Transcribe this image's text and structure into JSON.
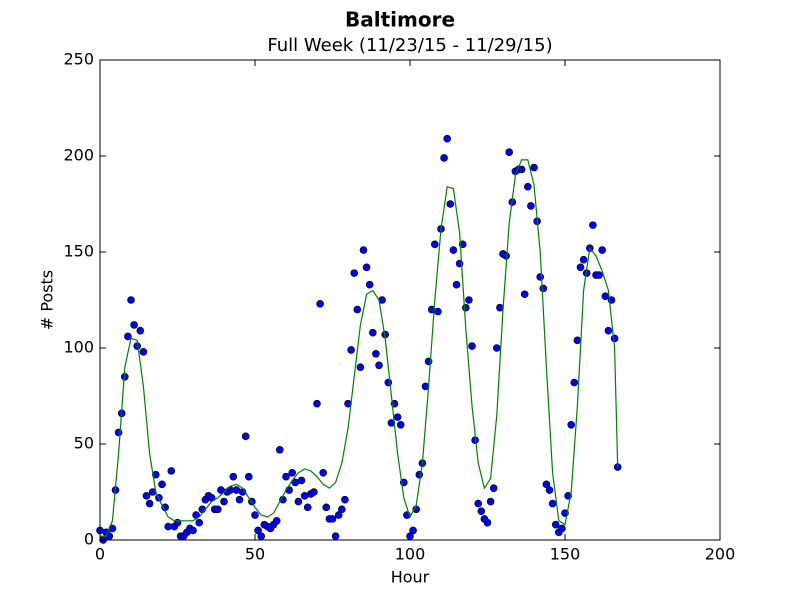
{
  "chart_data": {
    "type": "scatter",
    "title": "Baltimore",
    "subtitle": "Full Week (11/23/15 - 11/29/15)",
    "x_label": "Hour",
    "y_label": "# Posts",
    "xlim": [
      0,
      200
    ],
    "xticks": [
      0,
      50,
      100,
      150,
      200
    ],
    "ylim": [
      0,
      250
    ],
    "yticks": [
      0,
      50,
      100,
      150,
      200,
      250
    ],
    "grid": false,
    "series": [
      {
        "mode": "markers",
        "color": "#0000ff",
        "x": [
          0,
          1,
          2,
          3,
          4,
          5,
          6,
          7,
          8,
          9,
          10,
          11,
          12,
          13,
          14,
          15,
          16,
          17,
          18,
          19,
          20,
          21,
          22,
          23,
          24,
          25,
          26,
          27,
          28,
          29,
          30,
          31,
          32,
          33,
          34,
          35,
          36,
          37,
          38,
          39,
          40,
          41,
          42,
          43,
          44,
          45,
          46,
          47,
          48,
          49,
          50,
          51,
          52,
          53,
          54,
          55,
          56,
          57,
          58,
          59,
          60,
          61,
          62,
          63,
          64,
          65,
          66,
          67,
          68,
          69,
          70,
          71,
          72,
          73,
          74,
          75,
          76,
          77,
          78,
          79,
          80,
          81,
          82,
          83,
          84,
          85,
          86,
          87,
          88,
          89,
          90,
          91,
          92,
          93,
          94,
          95,
          96,
          97,
          98,
          99,
          100,
          101,
          102,
          103,
          104,
          105,
          106,
          107,
          108,
          109,
          110,
          111,
          112,
          113,
          114,
          115,
          116,
          117,
          118,
          119,
          120,
          121,
          122,
          123,
          124,
          125,
          126,
          127,
          128,
          129,
          130,
          131,
          132,
          133,
          134,
          135,
          136,
          137,
          138,
          139,
          140,
          141,
          142,
          143,
          144,
          145,
          146,
          147,
          148,
          149,
          150,
          151,
          152,
          153,
          154,
          155,
          156,
          157,
          158,
          159,
          160,
          161,
          162,
          163,
          164,
          165,
          166,
          167
        ],
        "values": [
          5,
          0,
          4,
          2,
          6,
          26,
          56,
          66,
          85,
          106,
          125,
          112,
          101,
          109,
          98,
          23,
          19,
          25,
          34,
          22,
          29,
          17,
          7,
          36,
          7,
          9,
          2,
          2,
          4,
          6,
          5,
          13,
          9,
          16,
          21,
          23,
          22,
          16,
          16,
          26,
          20,
          25,
          26,
          33,
          26,
          21,
          25,
          54,
          33,
          20,
          13,
          5,
          2,
          8,
          7,
          6,
          8,
          10,
          47,
          21,
          33,
          26,
          35,
          30,
          20,
          31,
          23,
          17,
          24,
          25,
          71,
          123,
          35,
          17,
          11,
          11,
          2,
          13,
          16,
          21,
          71,
          99,
          139,
          120,
          90,
          151,
          142,
          133,
          108,
          97,
          91,
          125,
          107,
          82,
          61,
          71,
          64,
          60,
          30,
          13,
          2,
          5,
          16,
          34,
          40,
          80,
          93,
          120,
          154,
          119,
          162,
          199,
          209,
          175,
          151,
          133,
          144,
          154,
          121,
          125,
          101,
          52,
          19,
          15,
          11,
          9,
          20,
          27,
          100,
          121,
          149,
          148,
          202,
          176,
          192,
          193,
          193,
          128,
          184,
          174,
          194,
          166,
          137,
          131,
          29,
          26,
          19,
          8,
          4,
          6,
          14,
          23,
          60,
          82,
          104,
          142,
          146,
          139,
          152,
          164,
          138,
          138,
          151,
          127,
          109,
          125,
          105,
          38
        ]
      },
      {
        "mode": "line",
        "color": "#008000",
        "x": [
          0,
          2,
          4,
          6,
          8,
          10,
          12,
          14,
          16,
          18,
          20,
          22,
          24,
          26,
          28,
          30,
          32,
          34,
          36,
          38,
          40,
          42,
          44,
          46,
          48,
          50,
          52,
          54,
          56,
          58,
          60,
          62,
          64,
          66,
          68,
          70,
          72,
          74,
          76,
          78,
          80,
          82,
          84,
          86,
          88,
          90,
          92,
          94,
          96,
          98,
          100,
          102,
          104,
          106,
          108,
          110,
          112,
          114,
          116,
          118,
          120,
          122,
          124,
          126,
          128,
          130,
          132,
          134,
          136,
          138,
          140,
          142,
          144,
          146,
          148,
          150,
          152,
          154,
          156,
          158,
          160,
          162,
          164,
          166,
          167
        ],
        "values": [
          2,
          2,
          10,
          45,
          90,
          105,
          104,
          80,
          45,
          25,
          18,
          12,
          10,
          10,
          10,
          10,
          12,
          16,
          20,
          22,
          25,
          28,
          29,
          27,
          22,
          17,
          13,
          12,
          14,
          20,
          26,
          31,
          35,
          37,
          36,
          33,
          29,
          27,
          30,
          40,
          58,
          85,
          112,
          128,
          130,
          125,
          105,
          75,
          45,
          22,
          12,
          18,
          40,
          80,
          125,
          162,
          184,
          183,
          160,
          110,
          70,
          40,
          27,
          32,
          65,
          120,
          165,
          190,
          198,
          198,
          185,
          150,
          90,
          35,
          10,
          8,
          25,
          70,
          130,
          152,
          148,
          140,
          130,
          100,
          38
        ]
      }
    ]
  }
}
